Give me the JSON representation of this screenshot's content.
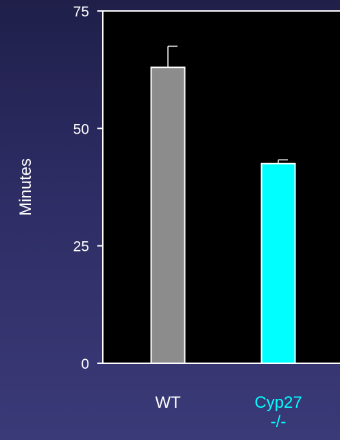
{
  "chart_data": {
    "type": "bar",
    "title": "",
    "xlabel": "",
    "ylabel": "Minutes",
    "ylim": [
      0,
      75
    ],
    "yticks": [
      0,
      25,
      50,
      75
    ],
    "grid": false,
    "categories": [
      {
        "label_lines": [
          "WT"
        ],
        "color": "#ffffff"
      },
      {
        "label_lines": [
          "Cyp27",
          "-/-"
        ],
        "color": "#00ffff"
      }
    ],
    "series": [
      {
        "values": [
          63,
          42.5
        ],
        "errors": [
          4.5,
          0.8
        ],
        "colors": [
          "#8c8c8c",
          "#00ffff"
        ]
      }
    ]
  },
  "colors": {
    "plot_background": "#000000",
    "axis": "#ffffff",
    "bar_outline": "#ffffff"
  }
}
